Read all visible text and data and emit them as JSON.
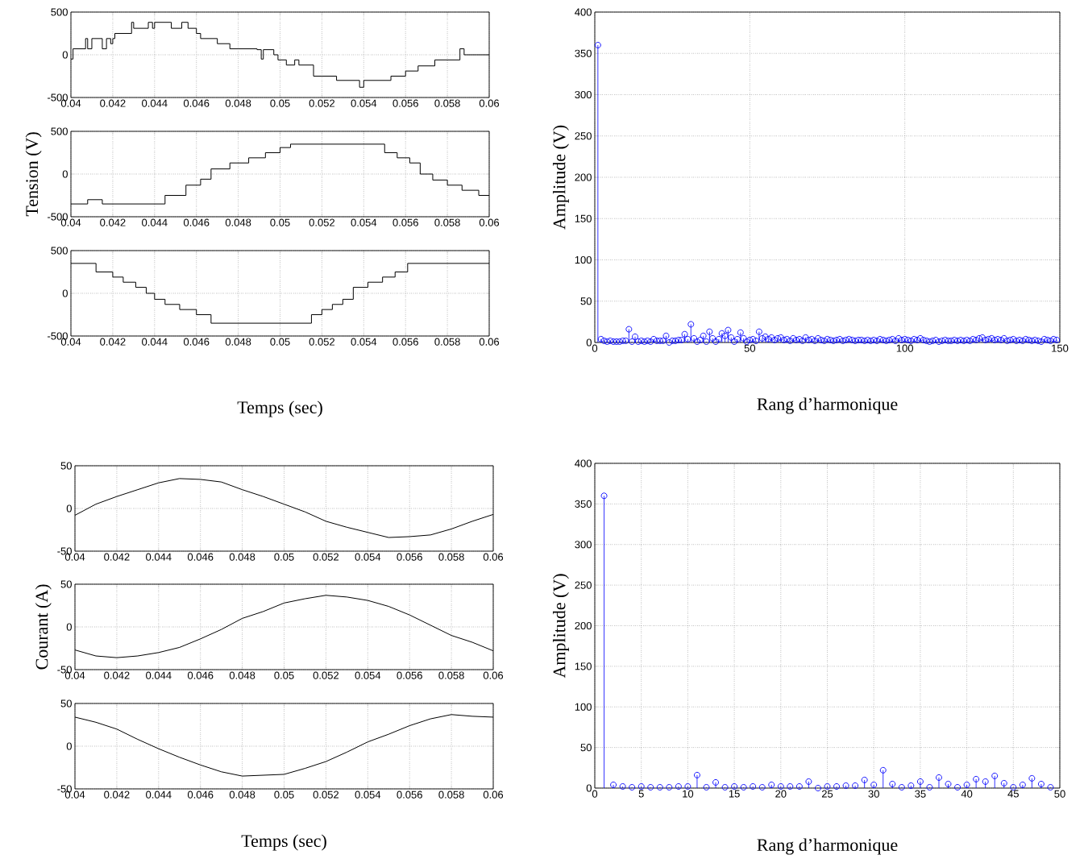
{
  "chart_data": [
    {
      "type": "step",
      "color": "#000000",
      "grid": true,
      "xlim": [
        0.04,
        0.06
      ],
      "ylim": [
        -500,
        500
      ],
      "xticks": [
        0.04,
        0.042,
        0.044,
        0.046,
        0.048,
        0.05,
        0.052,
        0.054,
        0.056,
        0.058,
        0.06
      ],
      "yticks": [
        -500,
        0,
        500
      ],
      "x": [
        0.04,
        0.0401,
        0.0407,
        0.0408,
        0.041,
        0.0415,
        0.0417,
        0.0419,
        0.042,
        0.0421,
        0.0429,
        0.043,
        0.0437,
        0.0439,
        0.044,
        0.0448,
        0.0453,
        0.0456,
        0.046,
        0.0462,
        0.047,
        0.0476,
        0.0489,
        0.0491,
        0.0492,
        0.0497,
        0.0499,
        0.0503,
        0.0507,
        0.0509,
        0.0516,
        0.0527,
        0.0538,
        0.054,
        0.0553,
        0.056,
        0.0566,
        0.0574,
        0.0586,
        0.0588,
        0.06
      ],
      "values": [
        -50,
        70,
        190,
        70,
        190,
        70,
        190,
        130,
        190,
        250,
        380,
        310,
        380,
        310,
        380,
        310,
        380,
        310,
        250,
        190,
        130,
        70,
        60,
        -50,
        60,
        0,
        -60,
        -120,
        -60,
        -120,
        -250,
        -300,
        -380,
        -300,
        -250,
        -190,
        -130,
        -60,
        70,
        0,
        0
      ]
    },
    {
      "type": "step",
      "color": "#000000",
      "grid": true,
      "ylabel": "Tension (V)",
      "xlim": [
        0.04,
        0.06
      ],
      "ylim": [
        -500,
        500
      ],
      "xticks": [
        0.04,
        0.042,
        0.044,
        0.046,
        0.048,
        0.05,
        0.052,
        0.054,
        0.056,
        0.058,
        0.06
      ],
      "yticks": [
        -500,
        0,
        500
      ],
      "x": [
        0.04,
        0.0408,
        0.0415,
        0.0445,
        0.0455,
        0.0462,
        0.0467,
        0.0476,
        0.0485,
        0.0493,
        0.05,
        0.0505,
        0.055,
        0.0556,
        0.0562,
        0.0567,
        0.0573,
        0.058,
        0.0587,
        0.0595,
        0.06
      ],
      "values": [
        -350,
        -300,
        -350,
        -250,
        -130,
        -60,
        60,
        130,
        190,
        250,
        310,
        350,
        250,
        190,
        130,
        0,
        -70,
        -130,
        -190,
        -250,
        -250
      ]
    },
    {
      "type": "step",
      "color": "#000000",
      "grid": true,
      "xlabel": "Temps (sec)",
      "xlim": [
        0.04,
        0.06
      ],
      "ylim": [
        -500,
        500
      ],
      "xticks": [
        0.04,
        0.042,
        0.044,
        0.046,
        0.048,
        0.05,
        0.052,
        0.054,
        0.056,
        0.058,
        0.06
      ],
      "yticks": [
        -500,
        0,
        500
      ],
      "x": [
        0.04,
        0.0412,
        0.042,
        0.0425,
        0.0431,
        0.0436,
        0.044,
        0.0445,
        0.0452,
        0.046,
        0.0467,
        0.0515,
        0.052,
        0.0525,
        0.053,
        0.0535,
        0.0542,
        0.0549,
        0.0555,
        0.0561,
        0.06
      ],
      "values": [
        350,
        250,
        190,
        130,
        70,
        0,
        -70,
        -130,
        -190,
        -250,
        -350,
        -250,
        -190,
        -130,
        -70,
        70,
        130,
        190,
        250,
        350,
        350
      ]
    },
    {
      "type": "lollipop",
      "color": "#0000ff",
      "marker": "circle",
      "grid": true,
      "xlabel": "Rang d’harmonique",
      "ylabel": "Amplitude (V)",
      "xlim": [
        0,
        150
      ],
      "ylim": [
        0,
        400
      ],
      "xticks": [
        0,
        50,
        100,
        150
      ],
      "yticks": [
        0,
        50,
        100,
        150,
        200,
        250,
        300,
        350,
        400
      ],
      "x": [
        1,
        2,
        3,
        4,
        5,
        6,
        7,
        8,
        9,
        10,
        11,
        12,
        13,
        14,
        15,
        16,
        17,
        18,
        19,
        20,
        21,
        22,
        23,
        24,
        25,
        26,
        27,
        28,
        29,
        30,
        31,
        32,
        33,
        34,
        35,
        36,
        37,
        38,
        39,
        40,
        41,
        42,
        43,
        44,
        45,
        46,
        47,
        48,
        49,
        50,
        51,
        52,
        53,
        54,
        55,
        56,
        57,
        58,
        59,
        60,
        61,
        62,
        63,
        64,
        65,
        66,
        67,
        68,
        69,
        70,
        71,
        72,
        73,
        74,
        75,
        76,
        77,
        78,
        79,
        80,
        81,
        82,
        83,
        84,
        85,
        86,
        87,
        88,
        89,
        90,
        91,
        92,
        93,
        94,
        95,
        96,
        97,
        98,
        99,
        100,
        101,
        102,
        103,
        104,
        105,
        106,
        107,
        108,
        109,
        110,
        111,
        112,
        113,
        114,
        115,
        116,
        117,
        118,
        119,
        120,
        121,
        122,
        123,
        124,
        125,
        126,
        127,
        128,
        129,
        130,
        131,
        132,
        133,
        134,
        135,
        136,
        137,
        138,
        139,
        140,
        141,
        142,
        143,
        144,
        145,
        146,
        147,
        148,
        149
      ],
      "values": [
        360,
        4,
        2,
        1,
        2,
        1,
        1,
        1,
        2,
        2,
        16,
        1,
        7,
        1,
        2,
        1,
        2,
        1,
        4,
        2,
        2,
        2,
        8,
        0,
        2,
        2,
        3,
        3,
        10,
        4,
        22,
        5,
        1,
        3,
        8,
        1,
        13,
        5,
        1,
        4,
        11,
        8,
        15,
        6,
        1,
        4,
        12,
        5,
        1,
        3,
        4,
        2,
        13,
        5,
        7,
        4,
        6,
        3,
        5,
        6,
        3,
        4,
        2,
        5,
        3,
        4,
        2,
        6,
        3,
        4,
        2,
        5,
        3,
        2,
        4,
        3,
        2,
        3,
        4,
        2,
        3,
        4,
        3,
        2,
        3,
        3,
        2,
        3,
        2,
        3,
        2,
        4,
        3,
        2,
        3,
        4,
        2,
        5,
        3,
        4,
        3,
        2,
        4,
        3,
        5,
        3,
        2,
        1,
        2,
        3,
        1,
        2,
        3,
        2,
        2,
        3,
        2,
        3,
        2,
        3,
        2,
        4,
        3,
        5,
        6,
        3,
        4,
        5,
        3,
        4,
        3,
        5,
        2,
        3,
        4,
        2,
        3,
        2,
        4,
        3,
        2,
        3,
        2,
        1,
        4,
        3,
        2,
        4,
        3
      ]
    },
    {
      "type": "line",
      "color": "#000000",
      "grid": true,
      "xlim": [
        0.04,
        0.06
      ],
      "ylim": [
        -50,
        50
      ],
      "xticks": [
        0.04,
        0.042,
        0.044,
        0.046,
        0.048,
        0.05,
        0.052,
        0.054,
        0.056,
        0.058,
        0.06
      ],
      "yticks": [
        -50,
        0,
        50
      ],
      "x": [
        0.04,
        0.041,
        0.042,
        0.043,
        0.044,
        0.045,
        0.046,
        0.047,
        0.048,
        0.049,
        0.05,
        0.051,
        0.052,
        0.053,
        0.054,
        0.055,
        0.056,
        0.057,
        0.058,
        0.059,
        0.06
      ],
      "values": [
        -8,
        5,
        14,
        22,
        30,
        35,
        34,
        31,
        22,
        14,
        5,
        -4,
        -15,
        -22,
        -28,
        -34,
        -33,
        -31,
        -24,
        -15,
        -7
      ]
    },
    {
      "type": "line",
      "color": "#000000",
      "grid": true,
      "ylabel": "Courant (A)",
      "xlim": [
        0.04,
        0.06
      ],
      "ylim": [
        -50,
        50
      ],
      "xticks": [
        0.04,
        0.042,
        0.044,
        0.046,
        0.048,
        0.05,
        0.052,
        0.054,
        0.056,
        0.058,
        0.06
      ],
      "yticks": [
        -50,
        0,
        50
      ],
      "x": [
        0.04,
        0.041,
        0.042,
        0.043,
        0.044,
        0.045,
        0.046,
        0.047,
        0.048,
        0.049,
        0.05,
        0.051,
        0.052,
        0.053,
        0.054,
        0.055,
        0.056,
        0.057,
        0.058,
        0.059,
        0.06
      ],
      "values": [
        -27,
        -34,
        -36,
        -34,
        -30,
        -24,
        -14,
        -3,
        10,
        18,
        28,
        33,
        37,
        35,
        31,
        24,
        14,
        2,
        -10,
        -18,
        -28
      ]
    },
    {
      "type": "line",
      "color": "#000000",
      "grid": true,
      "xlabel": "Temps (sec)",
      "xlim": [
        0.04,
        0.06
      ],
      "ylim": [
        -50,
        50
      ],
      "xticks": [
        0.04,
        0.042,
        0.044,
        0.046,
        0.048,
        0.05,
        0.052,
        0.054,
        0.056,
        0.058,
        0.06
      ],
      "yticks": [
        -50,
        0,
        50
      ],
      "x": [
        0.04,
        0.041,
        0.042,
        0.043,
        0.044,
        0.045,
        0.046,
        0.047,
        0.048,
        0.049,
        0.05,
        0.051,
        0.052,
        0.053,
        0.054,
        0.055,
        0.056,
        0.057,
        0.058,
        0.059,
        0.06
      ],
      "values": [
        34,
        28,
        20,
        8,
        -3,
        -13,
        -22,
        -30,
        -35,
        -34,
        -33,
        -26,
        -18,
        -7,
        5,
        14,
        24,
        32,
        37,
        35,
        34
      ]
    },
    {
      "type": "lollipop",
      "color": "#0000ff",
      "marker": "circle",
      "grid": true,
      "xlabel": "Rang d’harmonique",
      "ylabel": "Amplitude (V)",
      "xlim": [
        0,
        50
      ],
      "ylim": [
        0,
        400
      ],
      "xticks": [
        0,
        5,
        10,
        15,
        20,
        25,
        30,
        35,
        40,
        45,
        50
      ],
      "yticks": [
        0,
        50,
        100,
        150,
        200,
        250,
        300,
        350,
        400
      ],
      "x": [
        1,
        2,
        3,
        4,
        5,
        6,
        7,
        8,
        9,
        10,
        11,
        12,
        13,
        14,
        15,
        16,
        17,
        18,
        19,
        20,
        21,
        22,
        23,
        24,
        25,
        26,
        27,
        28,
        29,
        30,
        31,
        32,
        33,
        34,
        35,
        36,
        37,
        38,
        39,
        40,
        41,
        42,
        43,
        44,
        45,
        46,
        47,
        48,
        49
      ],
      "values": [
        360,
        4,
        2,
        1,
        2,
        1,
        1,
        1,
        2,
        2,
        16,
        1,
        7,
        1,
        2,
        1,
        2,
        1,
        4,
        2,
        2,
        2,
        8,
        0,
        2,
        2,
        3,
        3,
        10,
        4,
        22,
        5,
        1,
        3,
        8,
        1,
        13,
        5,
        1,
        4,
        11,
        8,
        15,
        6,
        1,
        4,
        12,
        5,
        1
      ]
    }
  ]
}
